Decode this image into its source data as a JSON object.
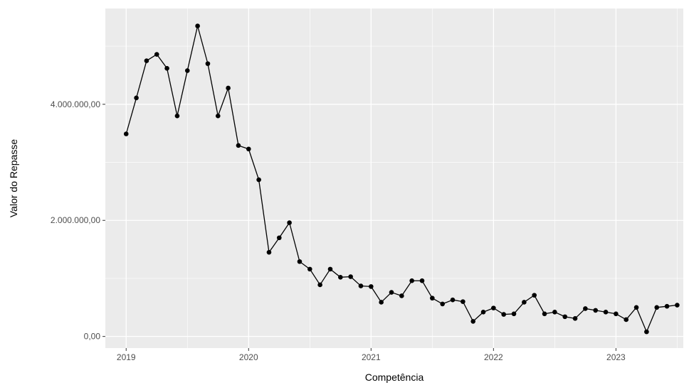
{
  "chart_data": {
    "type": "line",
    "title": "",
    "xlabel": "Competência",
    "ylabel": "Valor do Repasse",
    "x_ticks": [
      {
        "value": 2019,
        "label": "2019"
      },
      {
        "value": 2020,
        "label": "2020"
      },
      {
        "value": 2021,
        "label": "2021"
      },
      {
        "value": 2022,
        "label": "2022"
      },
      {
        "value": 2023,
        "label": "2023"
      }
    ],
    "y_ticks": [
      {
        "value": 0,
        "label": "0,00"
      },
      {
        "value": 2000000,
        "label": "2.000.000,00"
      },
      {
        "value": 4000000,
        "label": "4.000.000,00"
      }
    ],
    "xlim": [
      2018.83,
      2023.55
    ],
    "ylim": [
      -200000,
      5650000
    ],
    "grid": true,
    "colors": {
      "panel": "#ebebeb",
      "grid": "#ffffff",
      "line": "#000000",
      "point": "#000000"
    },
    "series": [
      {
        "x": [
          "2019-01",
          "2019-02",
          "2019-03",
          "2019-04",
          "2019-05",
          "2019-06",
          "2019-07",
          "2019-08",
          "2019-09",
          "2019-10",
          "2019-11",
          "2019-12",
          "2020-01",
          "2020-02",
          "2020-03",
          "2020-04",
          "2020-05",
          "2020-06",
          "2020-07",
          "2020-08",
          "2020-09",
          "2020-10",
          "2020-11",
          "2020-12",
          "2021-01",
          "2021-02",
          "2021-03",
          "2021-04",
          "2021-05",
          "2021-06",
          "2021-07",
          "2021-08",
          "2021-09",
          "2021-10",
          "2021-11",
          "2021-12",
          "2022-01",
          "2022-02",
          "2022-03",
          "2022-04",
          "2022-05",
          "2022-06",
          "2022-07",
          "2022-08",
          "2022-09",
          "2022-10",
          "2022-11",
          "2022-12",
          "2023-01",
          "2023-02",
          "2023-03",
          "2023-04",
          "2023-05",
          "2023-06",
          "2023-07"
        ],
        "values": [
          3490000,
          4110000,
          4750000,
          4860000,
          4620000,
          3800000,
          4580000,
          5350000,
          4700000,
          3800000,
          4280000,
          3290000,
          3230000,
          2700000,
          1450000,
          1700000,
          1960000,
          1290000,
          1160000,
          890000,
          1160000,
          1020000,
          1030000,
          870000,
          860000,
          590000,
          760000,
          700000,
          960000,
          960000,
          660000,
          560000,
          630000,
          600000,
          260000,
          420000,
          490000,
          380000,
          390000,
          590000,
          710000,
          390000,
          420000,
          340000,
          310000,
          480000,
          450000,
          420000,
          390000,
          290000,
          500000,
          80000,
          500000,
          520000,
          540000
        ]
      }
    ]
  }
}
